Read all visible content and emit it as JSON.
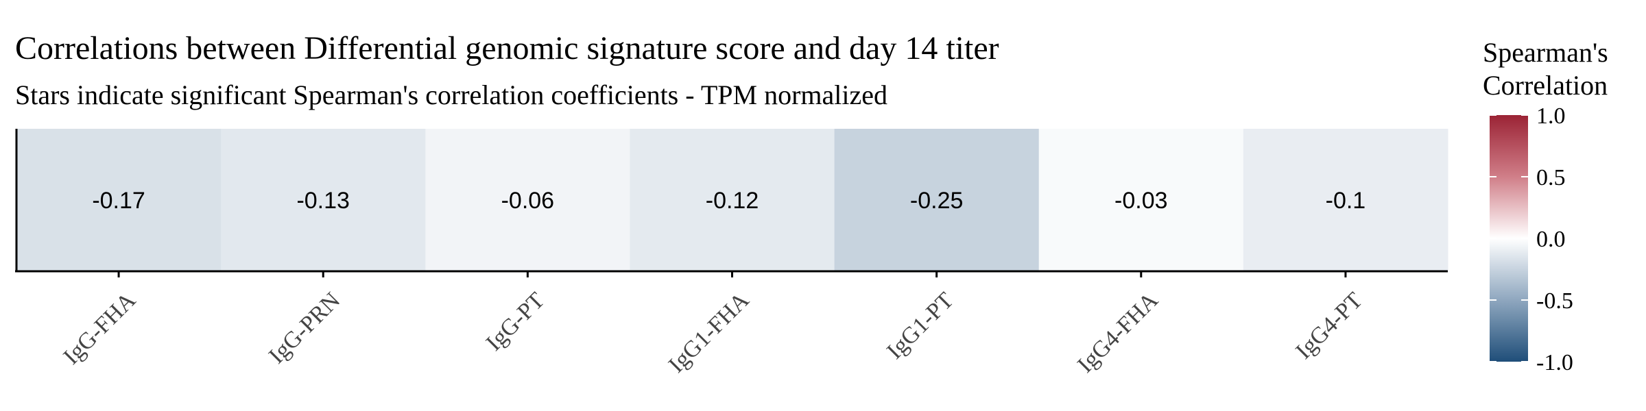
{
  "chart_data": {
    "type": "heatmap",
    "title": "Correlations between Differential genomic signature score and day 14 titer",
    "subtitle": "Stars indicate significant Spearman's correlation coefficients - TPM normalized",
    "categories": [
      "IgG-FHA",
      "IgG-PRN",
      "IgG-PT",
      "IgG1-FHA",
      "IgG1-PT",
      "IgG4-FHA",
      "IgG4-PT"
    ],
    "values": [
      -0.17,
      -0.13,
      -0.06,
      -0.12,
      -0.25,
      -0.03,
      -0.1
    ],
    "labels": [
      "-0.17",
      "-0.13",
      "-0.06",
      "-0.12",
      "-0.25",
      "-0.03",
      "-0.1"
    ],
    "legend": {
      "title_line1": "Spearman's",
      "title_line2": "Correlation",
      "range": [
        -1,
        1
      ],
      "ticks": [
        1.0,
        0.5,
        0.0,
        -0.5,
        -1.0
      ],
      "tick_labels": [
        "1.0",
        "0.5",
        "0.0",
        "-0.5",
        "-1.0"
      ],
      "placement": "right"
    },
    "colors": {
      "low": "#1f4e79",
      "mid": "#ffffff",
      "high": "#9b2335"
    },
    "grid": false
  }
}
